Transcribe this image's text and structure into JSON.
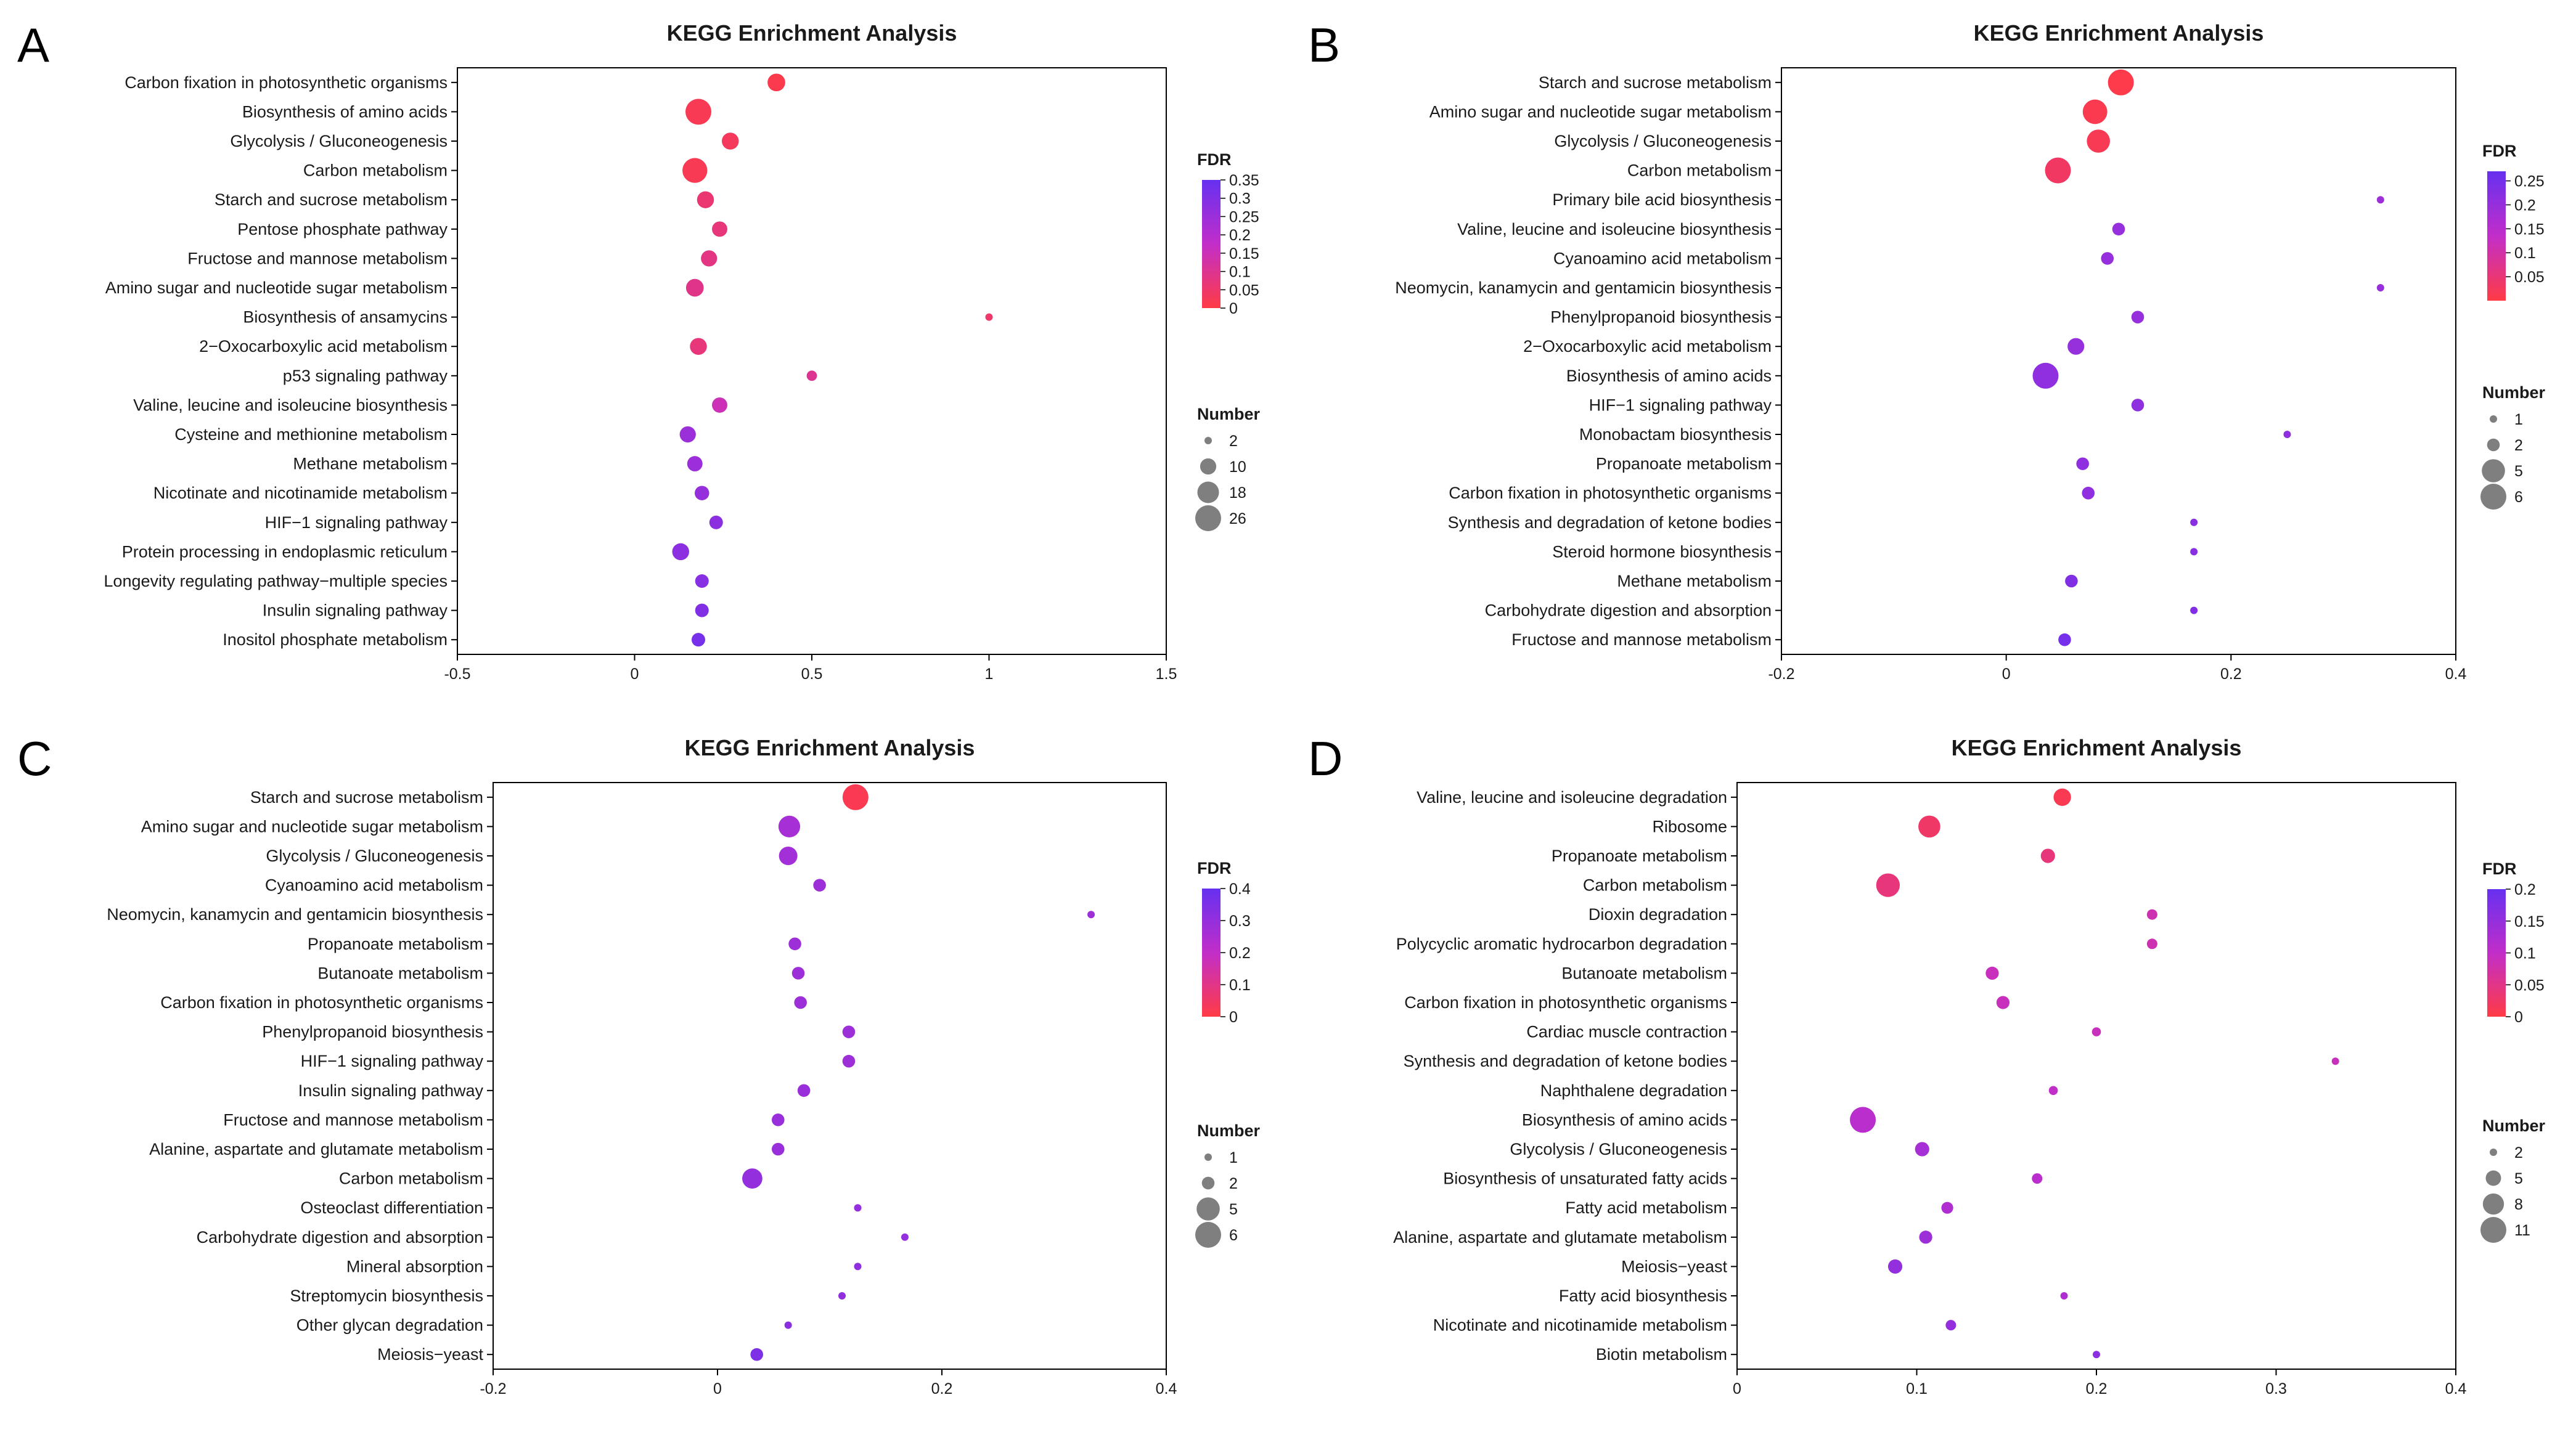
{
  "chart_data": [
    {
      "type": "scatter",
      "panel": "A",
      "title": "KEGG Enrichment Analysis",
      "xlabel": "",
      "ylabel": "",
      "xlim": [
        -0.5,
        1.5
      ],
      "xticks": [
        {
          "value": -0.5,
          "label": "-0.5"
        },
        {
          "value": 0,
          "label": "0"
        },
        {
          "value": 0.5,
          "label": "0.5"
        },
        {
          "value": 1,
          "label": "1"
        },
        {
          "value": 1.5,
          "label": "1.5"
        }
      ],
      "categories": [
        "Carbon fixation in photosynthetic organisms",
        "Biosynthesis of amino acids",
        "Glycolysis / Gluconeogenesis",
        "Carbon metabolism",
        "Starch and sucrose metabolism",
        "Pentose phosphate pathway",
        "Fructose and mannose metabolism",
        "Amino sugar and nucleotide sugar metabolism",
        "Biosynthesis of ansamycins",
        "2−Oxocarboxylic acid metabolism",
        "p53 signaling pathway",
        "Valine, leucine and isoleucine biosynthesis",
        "Cysteine and methionine metabolism",
        "Methane metabolism",
        "Nicotinate and nicotinamide metabolism",
        "HIF−1 signaling pathway",
        "Protein processing in endoplasmic reticulum",
        "Longevity regulating pathway−multiple species",
        "Insulin signaling pathway",
        "Inositol phosphate metabolism"
      ],
      "x": [
        0.4,
        0.18,
        0.27,
        0.17,
        0.2,
        0.24,
        0.21,
        0.17,
        1.0,
        0.18,
        0.5,
        0.24,
        0.15,
        0.17,
        0.19,
        0.23,
        0.13,
        0.19,
        0.19,
        0.18
      ],
      "size": [
        12,
        26,
        11,
        24,
        11,
        9,
        10,
        12,
        2,
        11,
        4,
        9,
        10,
        9,
        8,
        7,
        11,
        7,
        7,
        7
      ],
      "fdr": [
        0.01,
        0.02,
        0.03,
        0.02,
        0.06,
        0.07,
        0.08,
        0.09,
        0.05,
        0.07,
        0.1,
        0.15,
        0.25,
        0.25,
        0.26,
        0.28,
        0.28,
        0.29,
        0.3,
        0.32
      ],
      "fdr_legend": {
        "title": "FDR",
        "min": 0,
        "max": 0.35,
        "ticks": [
          {
            "value": 0.35,
            "label": "0.35"
          },
          {
            "value": 0.3,
            "label": "0.3"
          },
          {
            "value": 0.25,
            "label": "0.25"
          },
          {
            "value": 0.2,
            "label": "0.2"
          },
          {
            "value": 0.15,
            "label": "0.15"
          },
          {
            "value": 0.1,
            "label": "0.1"
          },
          {
            "value": 0.05,
            "label": "0.05"
          },
          {
            "value": 0,
            "label": "0"
          }
        ]
      },
      "size_legend": {
        "title": "Number",
        "min": 2,
        "max": 26,
        "entries": [
          {
            "value": 2,
            "label": "2"
          },
          {
            "value": 10,
            "label": "10"
          },
          {
            "value": 18,
            "label": "18"
          },
          {
            "value": 26,
            "label": "26"
          }
        ]
      }
    },
    {
      "type": "scatter",
      "panel": "B",
      "title": "KEGG Enrichment Analysis",
      "xlabel": "",
      "ylabel": "",
      "xlim": [
        -0.2,
        0.4
      ],
      "xticks": [
        {
          "value": -0.2,
          "label": "-0.2"
        },
        {
          "value": 0,
          "label": "0"
        },
        {
          "value": 0.2,
          "label": "0.2"
        },
        {
          "value": 0.4,
          "label": "0.4"
        }
      ],
      "categories": [
        "Starch and sucrose metabolism",
        "Amino sugar and nucleotide sugar metabolism",
        "Glycolysis / Gluconeogenesis",
        "Carbon metabolism",
        "Primary bile acid biosynthesis",
        "Valine, leucine and isoleucine biosynthesis",
        "Cyanoamino acid metabolism",
        "Neomycin, kanamycin and gentamicin biosynthesis",
        "Phenylpropanoid biosynthesis",
        "2−Oxocarboxylic acid metabolism",
        "Biosynthesis of amino acids",
        "HIF−1 signaling pathway",
        "Monobactam biosynthesis",
        "Propanoate metabolism",
        "Carbon fixation in photosynthetic organisms",
        "Synthesis and degradation of ketone bodies",
        "Steroid hormone biosynthesis",
        "Methane metabolism",
        "Carbohydrate digestion and absorption",
        "Fructose and mannose metabolism"
      ],
      "x": [
        0.102,
        0.079,
        0.082,
        0.046,
        0.333,
        0.1,
        0.09,
        0.333,
        0.117,
        0.062,
        0.035,
        0.117,
        0.25,
        0.068,
        0.073,
        0.167,
        0.167,
        0.058,
        0.167,
        0.052
      ],
      "size": [
        6,
        5.5,
        5,
        6,
        1,
        2,
        2,
        1,
        2,
        3,
        6,
        2,
        1,
        2,
        2,
        1,
        1,
        2,
        1,
        2
      ],
      "fdr": [
        0.005,
        0.01,
        0.015,
        0.03,
        0.19,
        0.2,
        0.2,
        0.2,
        0.2,
        0.2,
        0.21,
        0.21,
        0.21,
        0.21,
        0.21,
        0.22,
        0.22,
        0.23,
        0.23,
        0.25
      ],
      "fdr_legend": {
        "title": "FDR",
        "min": 0,
        "max": 0.27,
        "ticks": [
          {
            "value": 0.25,
            "label": "0.25"
          },
          {
            "value": 0.2,
            "label": "0.2"
          },
          {
            "value": 0.15,
            "label": "0.15"
          },
          {
            "value": 0.1,
            "label": "0.1"
          },
          {
            "value": 0.05,
            "label": "0.05"
          }
        ]
      },
      "size_legend": {
        "title": "Number",
        "min": 1,
        "max": 6,
        "entries": [
          {
            "value": 1,
            "label": "1"
          },
          {
            "value": 2,
            "label": "2"
          },
          {
            "value": 5,
            "label": "5"
          },
          {
            "value": 6,
            "label": "6"
          }
        ]
      }
    },
    {
      "type": "scatter",
      "panel": "C",
      "title": "KEGG Enrichment Analysis",
      "xlabel": "",
      "ylabel": "",
      "xlim": [
        -0.2,
        0.4
      ],
      "xticks": [
        {
          "value": -0.2,
          "label": "-0.2"
        },
        {
          "value": 0,
          "label": "0"
        },
        {
          "value": 0.2,
          "label": "0.2"
        },
        {
          "value": 0.4,
          "label": "0.4"
        }
      ],
      "categories": [
        "Starch and sucrose metabolism",
        "Amino sugar and nucleotide sugar metabolism",
        "Glycolysis / Gluconeogenesis",
        "Cyanoamino acid metabolism",
        "Neomycin, kanamycin and gentamicin biosynthesis",
        "Propanoate metabolism",
        "Butanoate metabolism",
        "Carbon fixation in photosynthetic organisms",
        "Phenylpropanoid biosynthesis",
        "HIF−1 signaling pathway",
        "Insulin signaling pathway",
        "Fructose and mannose metabolism",
        "Alanine, aspartate and glutamate metabolism",
        "Carbon metabolism",
        "Osteoclast differentiation",
        "Carbohydrate digestion and absorption",
        "Mineral absorption",
        "Streptomycin biosynthesis",
        "Other glycan degradation",
        "Meiosis−yeast"
      ],
      "x": [
        0.123,
        0.064,
        0.063,
        0.091,
        0.333,
        0.069,
        0.072,
        0.074,
        0.117,
        0.117,
        0.077,
        0.054,
        0.054,
        0.031,
        0.125,
        0.167,
        0.125,
        0.111,
        0.063,
        0.035
      ],
      "size": [
        6,
        4.5,
        3.5,
        2,
        1,
        2,
        2,
        2,
        2,
        2,
        2,
        2,
        2,
        4,
        1,
        1,
        1,
        1,
        1,
        2
      ],
      "fdr": [
        0.02,
        0.26,
        0.27,
        0.28,
        0.28,
        0.28,
        0.28,
        0.28,
        0.28,
        0.28,
        0.29,
        0.29,
        0.29,
        0.3,
        0.3,
        0.3,
        0.31,
        0.31,
        0.32,
        0.35
      ],
      "fdr_legend": {
        "title": "FDR",
        "min": 0,
        "max": 0.4,
        "ticks": [
          {
            "value": 0.4,
            "label": "0.4"
          },
          {
            "value": 0.3,
            "label": "0.3"
          },
          {
            "value": 0.2,
            "label": "0.2"
          },
          {
            "value": 0.1,
            "label": "0.1"
          },
          {
            "value": 0,
            "label": "0"
          }
        ]
      },
      "size_legend": {
        "title": "Number",
        "min": 1,
        "max": 6,
        "entries": [
          {
            "value": 1,
            "label": "1"
          },
          {
            "value": 2,
            "label": "2"
          },
          {
            "value": 5,
            "label": "5"
          },
          {
            "value": 6,
            "label": "6"
          }
        ]
      }
    },
    {
      "type": "scatter",
      "panel": "D",
      "title": "KEGG Enrichment Analysis",
      "xlabel": "",
      "ylabel": "",
      "xlim": [
        0,
        0.4
      ],
      "xticks": [
        {
          "value": 0,
          "label": "0"
        },
        {
          "value": 0.1,
          "label": "0.1"
        },
        {
          "value": 0.2,
          "label": "0.2"
        },
        {
          "value": 0.3,
          "label": "0.3"
        },
        {
          "value": 0.4,
          "label": "0.4"
        }
      ],
      "categories": [
        "Valine, leucine and isoleucine degradation",
        "Ribosome",
        "Propanoate metabolism",
        "Carbon metabolism",
        "Dioxin degradation",
        "Polycyclic aromatic hydrocarbon degradation",
        "Butanoate metabolism",
        "Carbon fixation in photosynthetic organisms",
        "Cardiac muscle contraction",
        "Synthesis and degradation of ketone bodies",
        "Naphthalene degradation",
        "Biosynthesis of amino acids",
        "Glycolysis / Gluconeogenesis",
        "Biosynthesis of unsaturated fatty acids",
        "Fatty acid metabolism",
        "Alanine, aspartate and glutamate metabolism",
        "Meiosis−yeast",
        "Fatty acid biosynthesis",
        "Nicotinate and nicotinamide metabolism",
        "Biotin metabolism"
      ],
      "x": [
        0.181,
        0.107,
        0.173,
        0.084,
        0.231,
        0.231,
        0.142,
        0.148,
        0.2,
        0.333,
        0.176,
        0.07,
        0.103,
        0.167,
        0.117,
        0.105,
        0.088,
        0.182,
        0.119,
        0.2
      ],
      "size": [
        6,
        8.5,
        4.5,
        9.5,
        3,
        3,
        4,
        4,
        2.5,
        2,
        2.5,
        11,
        4.5,
        3,
        3.5,
        4,
        4.5,
        2,
        3,
        2
      ],
      "fdr": [
        0.01,
        0.025,
        0.04,
        0.04,
        0.08,
        0.08,
        0.09,
        0.09,
        0.09,
        0.09,
        0.1,
        0.11,
        0.13,
        0.11,
        0.12,
        0.14,
        0.15,
        0.12,
        0.15,
        0.16
      ],
      "fdr_legend": {
        "title": "FDR",
        "min": 0,
        "max": 0.2,
        "ticks": [
          {
            "value": 0.2,
            "label": "0.2"
          },
          {
            "value": 0.15,
            "label": "0.15"
          },
          {
            "value": 0.1,
            "label": "0.1"
          },
          {
            "value": 0.05,
            "label": "0.05"
          },
          {
            "value": 0,
            "label": "0"
          }
        ]
      },
      "size_legend": {
        "title": "Number",
        "min": 2,
        "max": 11,
        "entries": [
          {
            "value": 2,
            "label": "2"
          },
          {
            "value": 5,
            "label": "5"
          },
          {
            "value": 8,
            "label": "8"
          },
          {
            "value": 11,
            "label": "11"
          }
        ]
      }
    }
  ],
  "colors": {
    "fdr_low": "#ff3b45",
    "fdr_mid": "#c22ec9",
    "fdr_high": "#6630f0",
    "size_legend_dot": "#7f7f7f",
    "axis": "#000000"
  }
}
